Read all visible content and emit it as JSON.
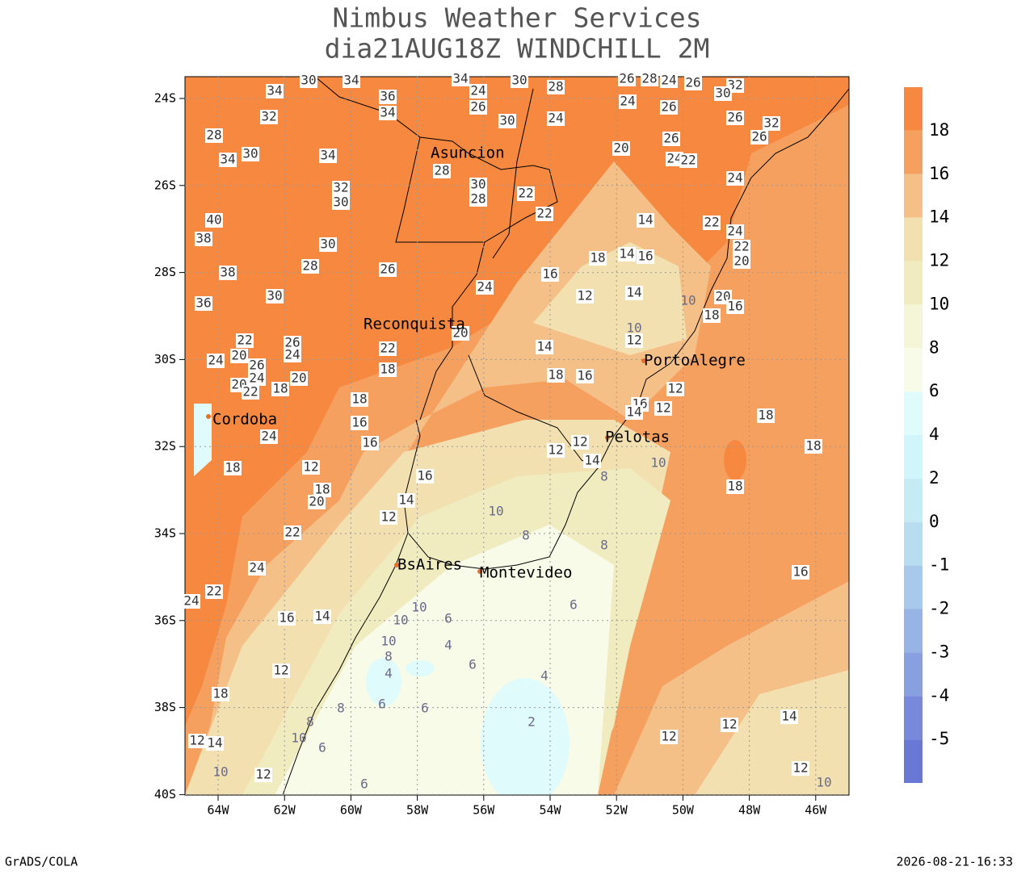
{
  "header": {
    "title": "Nimbus Weather Services",
    "subtitle": "dia21AUG18Z WINDCHILL 2M"
  },
  "map": {
    "lat_ticks": [
      "24S",
      "26S",
      "28S",
      "30S",
      "32S",
      "34S",
      "36S",
      "38S",
      "40S"
    ],
    "lon_ticks": [
      "64W",
      "62W",
      "60W",
      "58W",
      "56W",
      "54W",
      "52W",
      "50W",
      "48W",
      "46W"
    ],
    "cities": [
      "Asuncion",
      "Reconquista",
      "Cordoba",
      "PortoAlegre",
      "Pelotas",
      "BsAires",
      "Montevideo"
    ],
    "contour_labels": [
      34,
      32,
      30,
      34,
      36,
      34,
      34,
      24,
      26,
      30,
      28,
      30,
      24,
      26,
      28,
      24,
      26,
      24,
      26,
      32,
      30,
      26,
      32,
      26,
      20,
      26,
      24,
      22,
      24,
      28,
      34,
      30,
      34,
      28,
      30,
      28,
      22,
      22,
      32,
      30,
      40,
      38,
      28,
      26,
      24,
      38,
      36,
      30,
      30,
      14,
      22,
      24,
      22,
      20,
      18,
      14,
      16,
      16,
      12,
      14,
      20,
      16,
      18,
      10,
      10,
      12,
      14,
      18,
      16,
      20,
      22,
      18,
      22,
      26,
      24,
      24,
      20,
      26,
      24,
      20,
      22,
      18,
      20,
      18,
      16,
      16,
      24,
      18,
      12,
      18,
      20,
      16,
      14,
      12,
      22,
      24,
      22,
      24,
      16,
      14,
      10,
      10,
      10,
      8,
      4,
      6,
      4,
      6,
      6,
      6,
      8,
      8,
      10,
      6,
      6,
      2,
      4,
      6,
      8,
      8,
      10,
      10,
      12,
      12,
      14,
      8,
      16,
      14,
      12,
      12,
      18,
      18,
      18,
      16,
      12,
      18,
      12,
      14,
      10,
      12,
      12,
      12,
      14,
      12,
      10
    ]
  },
  "colorbar": {
    "labels": [
      18,
      16,
      14,
      12,
      10,
      8,
      6,
      4,
      2,
      0,
      -1,
      -2,
      -3,
      -4,
      -5
    ],
    "colors": [
      "#f68840",
      "#f6a060",
      "#f5c088",
      "#f2e0b0",
      "#f0ecc0",
      "#f5f5d8",
      "#f8fbe8",
      "#e0fbfb",
      "#d0f5fa",
      "#c5ebf5",
      "#b8dcf0",
      "#a8c8ec",
      "#98b4e6",
      "#88a0e0",
      "#7888da",
      "#6878d4"
    ]
  },
  "footer": {
    "left": "GrADS/COLA",
    "right": "2026-08-21-16:33"
  }
}
